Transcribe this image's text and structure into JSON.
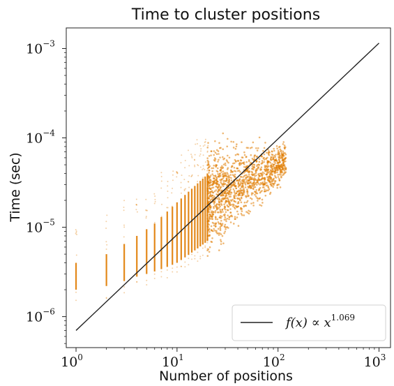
{
  "chart_data": {
    "type": "scatter",
    "title": "Time to cluster positions",
    "xlabel": "Number of positions",
    "ylabel": "Time (sec)",
    "xscale": "log",
    "yscale": "log",
    "xlim": [
      0.8,
      1300
    ],
    "ylim": [
      4.5e-07,
      0.0017
    ],
    "x_ticks": [
      {
        "base": "10",
        "exp": "0",
        "value": 1
      },
      {
        "base": "10",
        "exp": "1",
        "value": 10
      },
      {
        "base": "10",
        "exp": "2",
        "value": 100
      },
      {
        "base": "10",
        "exp": "3",
        "value": 1000
      }
    ],
    "y_ticks": [
      {
        "base": "10",
        "exp": "−6",
        "value": 1e-06
      },
      {
        "base": "10",
        "exp": "−5",
        "value": 1e-05
      },
      {
        "base": "10",
        "exp": "−4",
        "value": 0.0001
      },
      {
        "base": "10",
        "exp": "−3",
        "value": 0.001
      }
    ],
    "scatter_color": "#e07b00",
    "line_color": "#222222",
    "fit_line": {
      "x": [
        1,
        1000
      ],
      "y": [
        7e-07,
        0.00115
      ]
    },
    "scatter_columns": [
      {
        "x": 1,
        "y_min": 2e-06,
        "y_max": 4e-06
      },
      {
        "x": 2,
        "y_min": 2.2e-06,
        "y_max": 5e-06
      },
      {
        "x": 3,
        "y_min": 2.5e-06,
        "y_max": 6.5e-06
      },
      {
        "x": 4,
        "y_min": 2.8e-06,
        "y_max": 8e-06
      },
      {
        "x": 5,
        "y_min": 3e-06,
        "y_max": 9.5e-06
      },
      {
        "x": 6,
        "y_min": 3.2e-06,
        "y_max": 1.1e-05
      },
      {
        "x": 7,
        "y_min": 3.4e-06,
        "y_max": 1.3e-05
      },
      {
        "x": 8,
        "y_min": 3.6e-06,
        "y_max": 1.5e-05
      },
      {
        "x": 9,
        "y_min": 3.8e-06,
        "y_max": 1.7e-05
      },
      {
        "x": 10,
        "y_min": 4e-06,
        "y_max": 1.9e-05
      },
      {
        "x": 11,
        "y_min": 4.3e-06,
        "y_max": 2.1e-05
      },
      {
        "x": 12,
        "y_min": 4.6e-06,
        "y_max": 2.3e-05
      },
      {
        "x": 13,
        "y_min": 4.9e-06,
        "y_max": 2.5e-05
      },
      {
        "x": 14,
        "y_min": 5.2e-06,
        "y_max": 2.7e-05
      },
      {
        "x": 15,
        "y_min": 5.5e-06,
        "y_max": 2.9e-05
      },
      {
        "x": 16,
        "y_min": 5.8e-06,
        "y_max": 3.1e-05
      },
      {
        "x": 17,
        "y_min": 6.1e-06,
        "y_max": 3.3e-05
      },
      {
        "x": 18,
        "y_min": 6.4e-06,
        "y_max": 3.5e-05
      },
      {
        "x": 19,
        "y_min": 6.7e-06,
        "y_max": 3.7e-05
      },
      {
        "x": 20,
        "y_min": 7e-06,
        "y_max": 4e-05
      }
    ],
    "scatter_cloud": {
      "x_range": [
        20,
        120
      ],
      "y_center_at_x30": 2.5e-05,
      "y_center_at_x100": 5e-05
    },
    "legend": {
      "position": "lower-right",
      "label": "f(x) ∝ x",
      "label_exp": "1.069"
    }
  }
}
